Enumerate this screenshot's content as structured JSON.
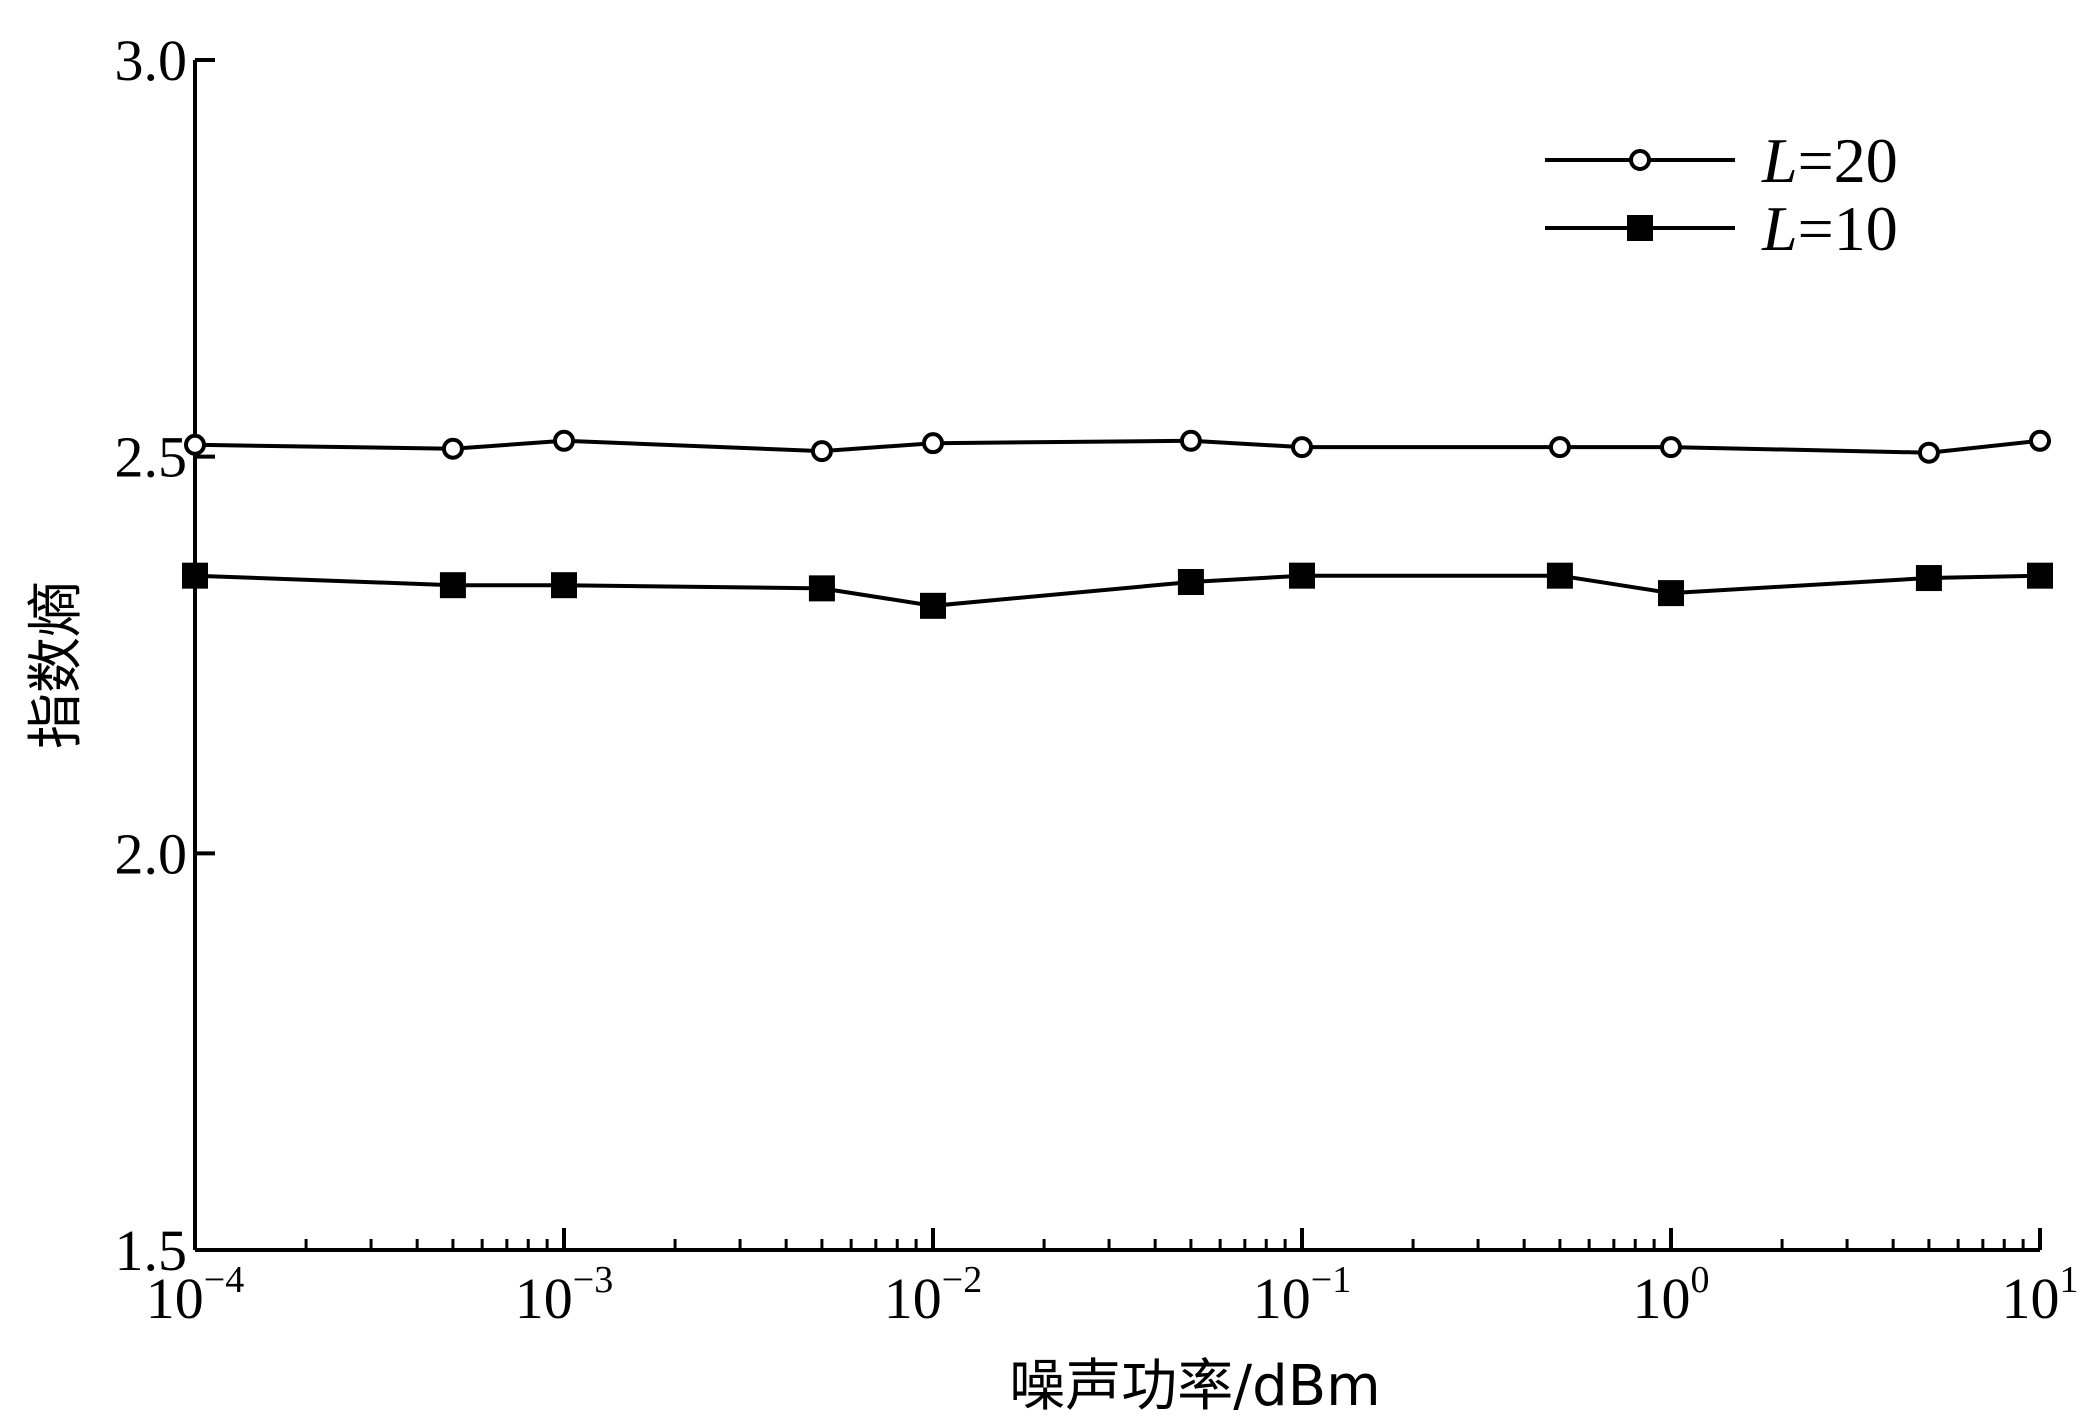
{
  "chart_data": {
    "type": "line",
    "xlabel": "噪声功率/dBm",
    "ylabel": "指数熵",
    "x_scale": "log",
    "xlim": [
      0.0001,
      10
    ],
    "ylim": [
      1.5,
      3.0
    ],
    "x_ticks": [
      {
        "value": 0.0001,
        "base": "10",
        "exp": "−4"
      },
      {
        "value": 0.001,
        "base": "10",
        "exp": "−3"
      },
      {
        "value": 0.01,
        "base": "10",
        "exp": "−2"
      },
      {
        "value": 0.1,
        "base": "10",
        "exp": "−1"
      },
      {
        "value": 1,
        "base": "10",
        "exp": "0"
      },
      {
        "value": 10,
        "base": "10",
        "exp": "1"
      }
    ],
    "y_ticks": [
      {
        "value": 1.5,
        "label": "1.5"
      },
      {
        "value": 2.0,
        "label": "2.0"
      },
      {
        "value": 2.5,
        "label": "2.5"
      },
      {
        "value": 3.0,
        "label": "3.0"
      }
    ],
    "grid": false,
    "legend_position": "top-right",
    "series": [
      {
        "name": "L=20",
        "legend_italic": "L",
        "legend_rest": "=20",
        "marker": "open-circle",
        "x": [
          0.0001,
          0.0005,
          0.001,
          0.005,
          0.01,
          0.05,
          0.1,
          0.5,
          1,
          5,
          10
        ],
        "y": [
          2.515,
          2.51,
          2.52,
          2.507,
          2.517,
          2.52,
          2.512,
          2.512,
          2.512,
          2.505,
          2.52
        ]
      },
      {
        "name": "L=10",
        "legend_italic": "L",
        "legend_rest": "=10",
        "marker": "filled-square",
        "x": [
          0.0001,
          0.0005,
          0.001,
          0.005,
          0.01,
          0.05,
          0.1,
          0.5,
          1,
          5,
          10
        ],
        "y": [
          2.35,
          2.338,
          2.338,
          2.334,
          2.312,
          2.342,
          2.35,
          2.35,
          2.328,
          2.347,
          2.35
        ]
      }
    ]
  }
}
